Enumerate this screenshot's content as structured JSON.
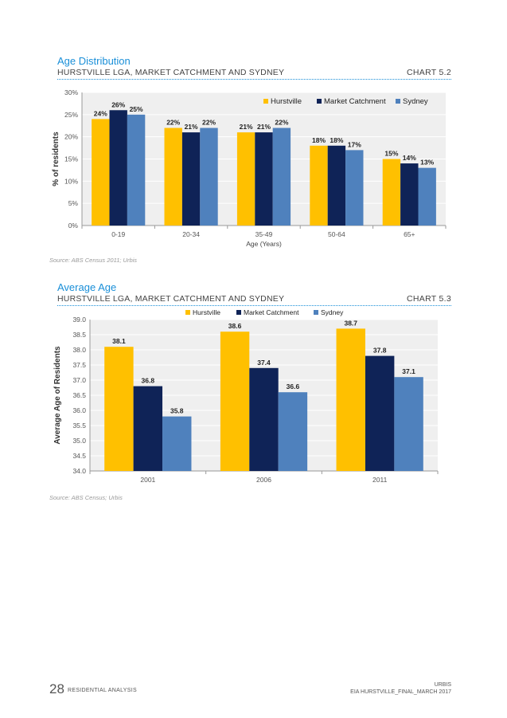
{
  "charts": [
    {
      "title": "Age Distribution",
      "subtitle": "HURSTVILLE LGA, MARKET CATCHMENT AND SYDNEY",
      "chart_number": "CHART 5.2",
      "source": "Source: ABS Census 2011; Urbis"
    },
    {
      "title": "Average Age",
      "subtitle": "HURSTVILLE LGA, MARKET CATCHMENT AND SYDNEY",
      "chart_number": "CHART 5.3",
      "source": "Source: ABS Census; Urbis"
    }
  ],
  "footer": {
    "page_number": "28",
    "section": "RESIDENTIAL ANALYSIS",
    "company": "URBIS",
    "document": "EIA HURSTVILLE_FINAL_MARCH 2017"
  },
  "colors": {
    "hurstville": "#ffc000",
    "market_catchment": "#0f2357",
    "sydney": "#4f81bd",
    "plot_bg": "#efefef",
    "accent": "#1a8fd8"
  },
  "chart_data": [
    {
      "type": "bar",
      "categories": [
        "0-19",
        "20-34",
        "35-49",
        "50-64",
        "65+"
      ],
      "series": [
        {
          "name": "Hurstville",
          "values": [
            24,
            22,
            21,
            18,
            15
          ],
          "labels": [
            "24%",
            "22%",
            "21%",
            "18%",
            "15%"
          ]
        },
        {
          "name": "Market Catchment",
          "values": [
            26,
            21,
            21,
            18,
            14
          ],
          "labels": [
            "26%",
            "21%",
            "21%",
            "18%",
            "14%"
          ]
        },
        {
          "name": "Sydney",
          "values": [
            25,
            22,
            22,
            17,
            13
          ],
          "labels": [
            "25%",
            "22%",
            "22%",
            "17%",
            "13%"
          ]
        }
      ],
      "xlabel": "Age (Years)",
      "ylabel": "% of residents",
      "ylim": [
        0,
        30
      ],
      "yticks": [
        "0%",
        "5%",
        "10%",
        "15%",
        "20%",
        "25%",
        "30%"
      ],
      "legend": "top-right",
      "grid": true
    },
    {
      "type": "bar",
      "categories": [
        "2001",
        "2006",
        "2011"
      ],
      "series": [
        {
          "name": "Hurstville",
          "values": [
            38.1,
            38.6,
            38.7
          ],
          "labels": [
            "38.1",
            "38.6",
            "38.7"
          ]
        },
        {
          "name": "Market Catchment",
          "values": [
            36.8,
            37.4,
            37.8
          ],
          "labels": [
            "36.8",
            "37.4",
            "37.8"
          ]
        },
        {
          "name": "Sydney",
          "values": [
            35.8,
            36.6,
            37.1
          ],
          "labels": [
            "35.8",
            "36.6",
            "37.1"
          ]
        }
      ],
      "xlabel": "",
      "ylabel": "Average Age of Residents",
      "ylim": [
        34.0,
        39.0
      ],
      "yticks": [
        "34.0",
        "34.5",
        "35.0",
        "35.5",
        "36.0",
        "36.5",
        "37.0",
        "37.5",
        "38.0",
        "38.5",
        "39.0"
      ],
      "legend": "top",
      "grid": true
    }
  ]
}
